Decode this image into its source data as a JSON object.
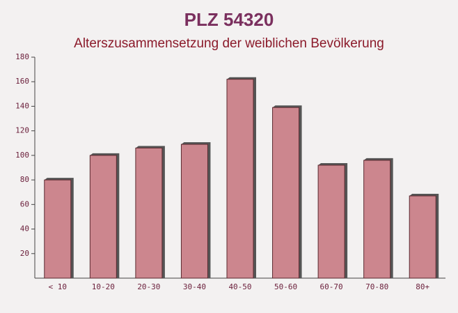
{
  "chart_data": {
    "type": "bar",
    "title": "PLZ 54320",
    "subtitle": "Alterszusammensetzung der weiblichen Bevölkerung",
    "categories": [
      "< 10",
      "10-20",
      "20-30",
      "30-40",
      "40-50",
      "50-60",
      "60-70",
      "70-80",
      "80+"
    ],
    "values": [
      80,
      100,
      106,
      109,
      162,
      139,
      92,
      96,
      67
    ],
    "color": "#c4737c",
    "ylim": [
      0,
      180
    ],
    "yticks": [
      20,
      40,
      60,
      80,
      100,
      120,
      140,
      160,
      180
    ]
  }
}
